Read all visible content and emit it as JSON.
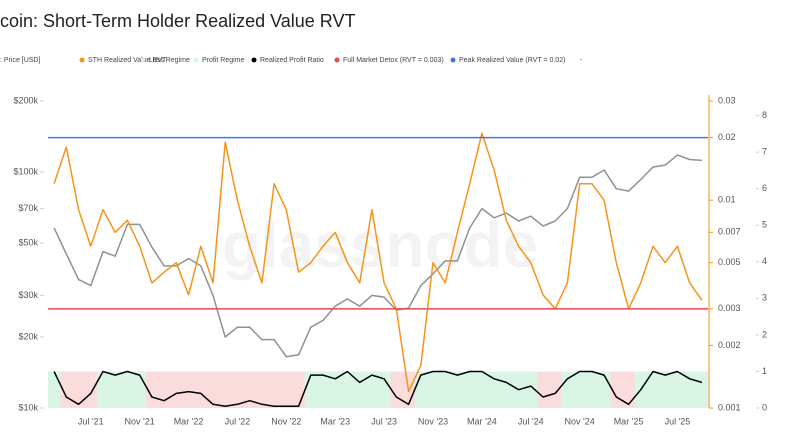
{
  "chart_data": {
    "type": "line",
    "title": "coin: Short-Term Holder Realized Value RVT",
    "watermark": "glassnode",
    "categories": [
      null,
      null,
      null,
      "Jul '21",
      null,
      null,
      null,
      "Nov '21",
      null,
      null,
      null,
      "Mar '22",
      null,
      null,
      null,
      "Jul '22",
      null,
      null,
      null,
      "Nov '22",
      null,
      null,
      null,
      "Mar '23",
      null,
      null,
      null,
      "Jul '23",
      null,
      null,
      null,
      "Nov '23",
      null,
      null,
      null,
      "Mar '24",
      null,
      null,
      null,
      "Jul '24",
      null,
      null,
      null,
      "Nov '24",
      null,
      null,
      null,
      "Mar '25",
      null,
      null,
      null,
      "Jul '25",
      null,
      null
    ],
    "series": [
      {
        "name": ": Price [USD]",
        "color": "#8e9194",
        "axis": "y",
        "values": [
          58000,
          45000,
          35000,
          33000,
          46000,
          44000,
          60000,
          60000,
          48000,
          40000,
          40000,
          43000,
          40000,
          30000,
          20000,
          22000,
          22000,
          19500,
          19500,
          16500,
          16800,
          22000,
          23500,
          27000,
          29000,
          27000,
          30000,
          29500,
          26000,
          26500,
          33000,
          37000,
          42000,
          42000,
          58000,
          70000,
          64000,
          67000,
          62000,
          65000,
          59000,
          62000,
          70000,
          95000,
          95000,
          102000,
          85000,
          83000,
          93000,
          105000,
          107000,
          118000,
          113000,
          112000
        ]
      },
      {
        "name": "STH Realized Value RVT",
        "color": "#f7931a",
        "axis": "y2",
        "values": [
          0.012,
          0.018,
          0.009,
          0.006,
          0.009,
          0.007,
          0.008,
          0.006,
          0.004,
          0.0045,
          0.005,
          0.0035,
          0.006,
          0.004,
          0.019,
          0.01,
          0.006,
          0.004,
          0.012,
          0.009,
          0.0045,
          0.005,
          0.006,
          0.007,
          0.005,
          0.004,
          0.009,
          0.004,
          0.003,
          0.0012,
          0.0016,
          0.005,
          0.004,
          0.007,
          0.012,
          0.021,
          0.014,
          0.008,
          0.006,
          0.005,
          0.0035,
          0.003,
          0.004,
          0.012,
          0.012,
          0.01,
          0.005,
          0.003,
          0.004,
          0.006,
          0.005,
          0.006,
          0.004,
          0.0033
        ]
      },
      {
        "name": "Loss Regime",
        "color": "#fbdcdc",
        "axis": "y3",
        "values": [
          null,
          1,
          1,
          1,
          null,
          null,
          null,
          null,
          1,
          1,
          1,
          1,
          1,
          1,
          1,
          1,
          1,
          1,
          1,
          1,
          1,
          null,
          null,
          null,
          null,
          null,
          null,
          null,
          1,
          1,
          null,
          null,
          null,
          null,
          null,
          null,
          null,
          null,
          null,
          null,
          1,
          1,
          null,
          null,
          null,
          null,
          1,
          1,
          null,
          null,
          null,
          null,
          null,
          null
        ]
      },
      {
        "name": "Profit Regime",
        "color": "#d9f5e6",
        "axis": "y3",
        "values": [
          1,
          null,
          null,
          null,
          1,
          1,
          1,
          1,
          null,
          null,
          null,
          null,
          null,
          null,
          null,
          null,
          null,
          null,
          null,
          null,
          null,
          1,
          1,
          1,
          1,
          1,
          1,
          1,
          null,
          null,
          1,
          1,
          1,
          1,
          1,
          1,
          1,
          1,
          1,
          1,
          null,
          null,
          1,
          1,
          1,
          1,
          null,
          null,
          1,
          1,
          1,
          1,
          1,
          1
        ]
      },
      {
        "name": "Realized Profit Ratio",
        "color": "#000000",
        "axis": "y3",
        "values": [
          1,
          0.3,
          0.1,
          0.4,
          1,
          0.9,
          1,
          0.9,
          0.3,
          0.2,
          0.4,
          0.45,
          0.4,
          0.1,
          0.05,
          0.1,
          0.2,
          0.1,
          0.05,
          0.05,
          0.05,
          0.9,
          0.9,
          0.8,
          1,
          0.7,
          0.9,
          0.8,
          0.3,
          0.1,
          0.9,
          1,
          1,
          0.9,
          1,
          1,
          0.8,
          0.7,
          0.5,
          0.6,
          0.3,
          0.4,
          0.8,
          1,
          1,
          0.9,
          0.3,
          0.1,
          0.5,
          1,
          0.9,
          1,
          0.8,
          0.7
        ]
      }
    ],
    "hlines": [
      {
        "name": "Full Market Detox (RVT = 0.003)",
        "value": 0.003,
        "color": "#e8474f",
        "axis": "y2"
      },
      {
        "name": "Peak Realized Value (RVT = 0.02)",
        "value": 0.02,
        "color": "#4a72d8",
        "axis": "y2"
      }
    ],
    "legend_extra": "-",
    "ylim": [
      10000,
      200000
    ],
    "yticks": [
      {
        "value": 10000,
        "label": "$10k"
      },
      {
        "value": 20000,
        "label": "$20k"
      },
      {
        "value": 30000,
        "label": "$30k"
      },
      {
        "value": 50000,
        "label": "$50k"
      },
      {
        "value": 70000,
        "label": "$70k"
      },
      {
        "value": 100000,
        "label": "$100k"
      },
      {
        "value": 200000,
        "label": "$200k"
      }
    ],
    "ylog": true,
    "y2lim": [
      0.001,
      0.03
    ],
    "y2ticks": [
      0.001,
      0.002,
      0.003,
      0.005,
      0.007,
      0.01,
      0.02,
      0.03
    ],
    "y2log": true,
    "y3lim": [
      0,
      8.4
    ],
    "y3ticks": [
      0,
      1,
      2,
      3,
      4,
      5,
      6,
      7,
      8
    ]
  }
}
